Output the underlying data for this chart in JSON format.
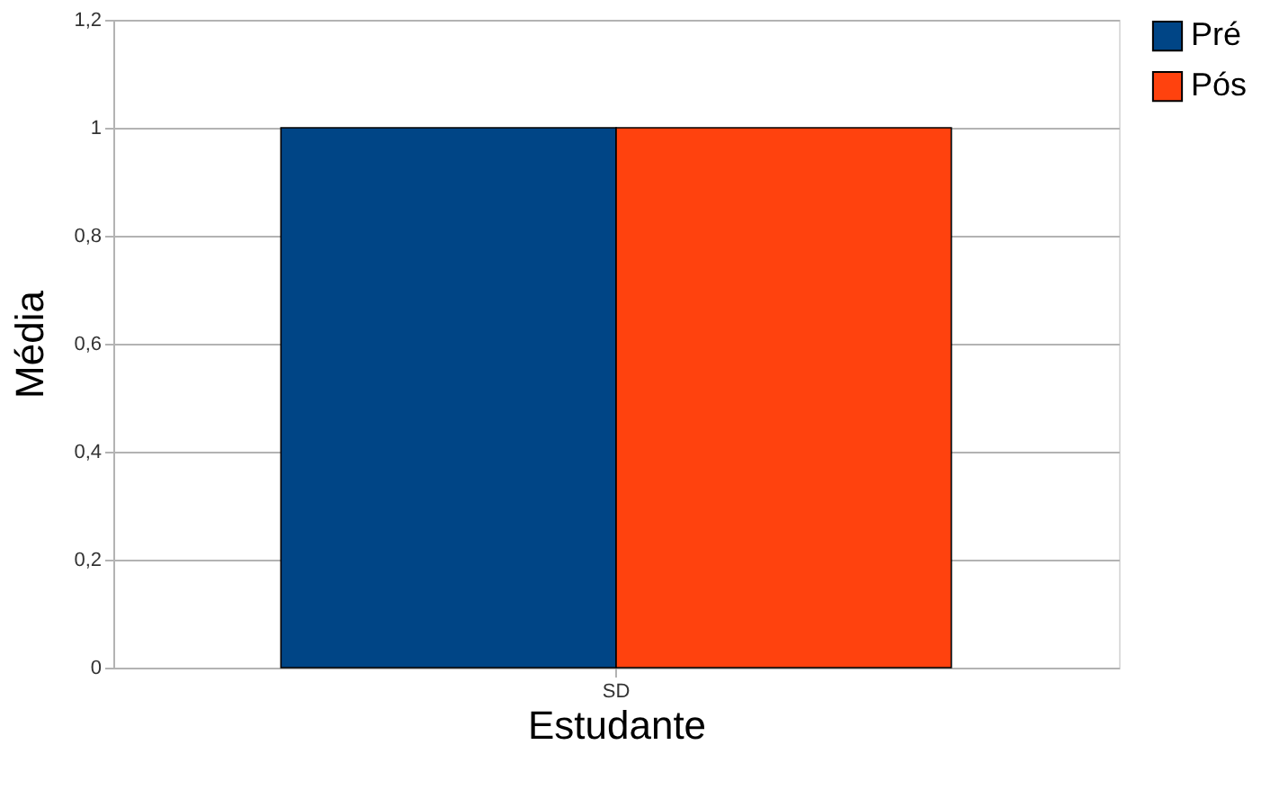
{
  "chart_data": {
    "type": "bar",
    "xlabel": "Estudante",
    "ylabel": "Média",
    "categories": [
      "SD"
    ],
    "series": [
      {
        "name": "Pré",
        "color": "#004586",
        "values": [
          1
        ]
      },
      {
        "name": "Pós",
        "color": "#ff420e",
        "values": [
          1
        ]
      }
    ],
    "ylim": [
      0,
      1.2
    ],
    "yticks": [
      0,
      {
        "value": 0.2,
        "label": "0,2"
      },
      {
        "value": 0.4,
        "label": "0,4"
      },
      {
        "value": 0.6,
        "label": "0,6"
      },
      {
        "value": 0.8,
        "label": "0,8"
      },
      1,
      {
        "value": 1.2,
        "label": "1,2"
      }
    ],
    "grid": "y",
    "legend": "right"
  }
}
